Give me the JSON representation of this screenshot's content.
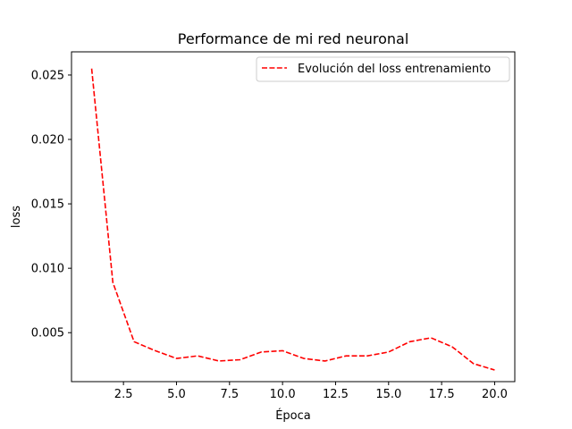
{
  "chart_data": {
    "type": "line",
    "title": "Performance de mi red neuronal",
    "xlabel": "Época",
    "ylabel": "loss",
    "xlim": [
      0.05,
      20.95
    ],
    "ylim": [
      0.0012,
      0.0268
    ],
    "xticks": [
      2.5,
      5.0,
      7.5,
      10.0,
      12.5,
      15.0,
      17.5,
      20.0
    ],
    "xtick_labels": [
      "2.5",
      "5.0",
      "7.5",
      "10.0",
      "12.5",
      "15.0",
      "17.5",
      "20.0"
    ],
    "yticks": [
      0.005,
      0.01,
      0.015,
      0.02,
      0.025
    ],
    "ytick_labels": [
      "0.005",
      "0.010",
      "0.015",
      "0.020",
      "0.025"
    ],
    "grid": false,
    "legend_position": "top-right",
    "series": [
      {
        "name": "Evolución del loss entrenamiento",
        "color": "#ff0000",
        "line_style": "dashed",
        "x": [
          1,
          2,
          3,
          4,
          5,
          6,
          7,
          8,
          9,
          10,
          11,
          12,
          13,
          14,
          15,
          16,
          17,
          18,
          19,
          20
        ],
        "y": [
          0.0255,
          0.0089,
          0.0043,
          0.0036,
          0.003,
          0.0032,
          0.0028,
          0.0029,
          0.0035,
          0.0036,
          0.003,
          0.0028,
          0.0032,
          0.0032,
          0.0035,
          0.0043,
          0.0046,
          0.0039,
          0.0026,
          0.0021
        ]
      }
    ]
  }
}
